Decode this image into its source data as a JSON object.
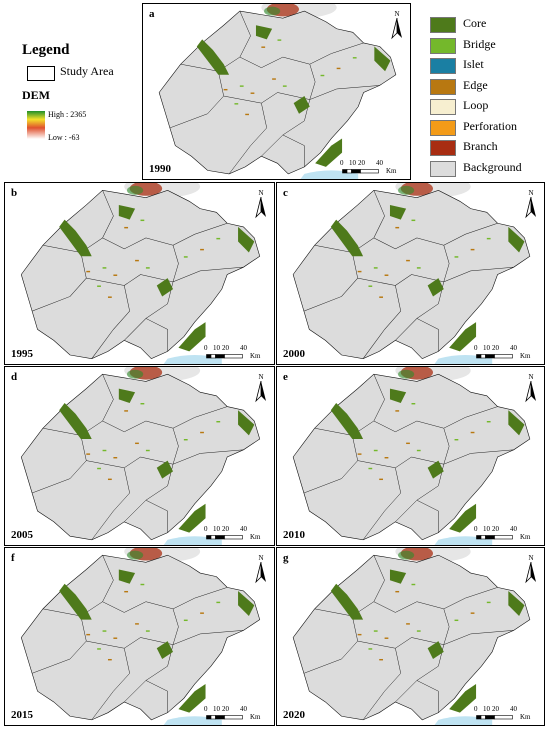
{
  "legend": {
    "title": "Legend",
    "study_area": "Study Area",
    "dem_title": "DEM",
    "dem_high": "High : 2365",
    "dem_low": "Low : -63",
    "dem_ramp_colors": [
      "#1f8f2a",
      "#f4e12a",
      "#e0512e",
      "#ffffff"
    ]
  },
  "classes": [
    {
      "label": "Core",
      "color": "#4e7a1b"
    },
    {
      "label": "Bridge",
      "color": "#74b82b"
    },
    {
      "label": "Islet",
      "color": "#1a7fa3"
    },
    {
      "label": "Edge",
      "color": "#b87811"
    },
    {
      "label": "Loop",
      "color": "#f7efd0"
    },
    {
      "label": "Perforation",
      "color": "#f39b18"
    },
    {
      "label": "Branch",
      "color": "#a82d12"
    },
    {
      "label": "Background",
      "color": "#dcdcdc"
    }
  ],
  "panels": [
    {
      "letter": "a",
      "year": "1990"
    },
    {
      "letter": "b",
      "year": "1995"
    },
    {
      "letter": "c",
      "year": "2000"
    },
    {
      "letter": "d",
      "year": "2005"
    },
    {
      "letter": "e",
      "year": "2010"
    },
    {
      "letter": "f",
      "year": "2015"
    },
    {
      "letter": "g",
      "year": "2020"
    }
  ],
  "north_label": "N",
  "scale": {
    "ticks": [
      "0",
      "10",
      "20",
      "40"
    ],
    "unit": "Km"
  }
}
